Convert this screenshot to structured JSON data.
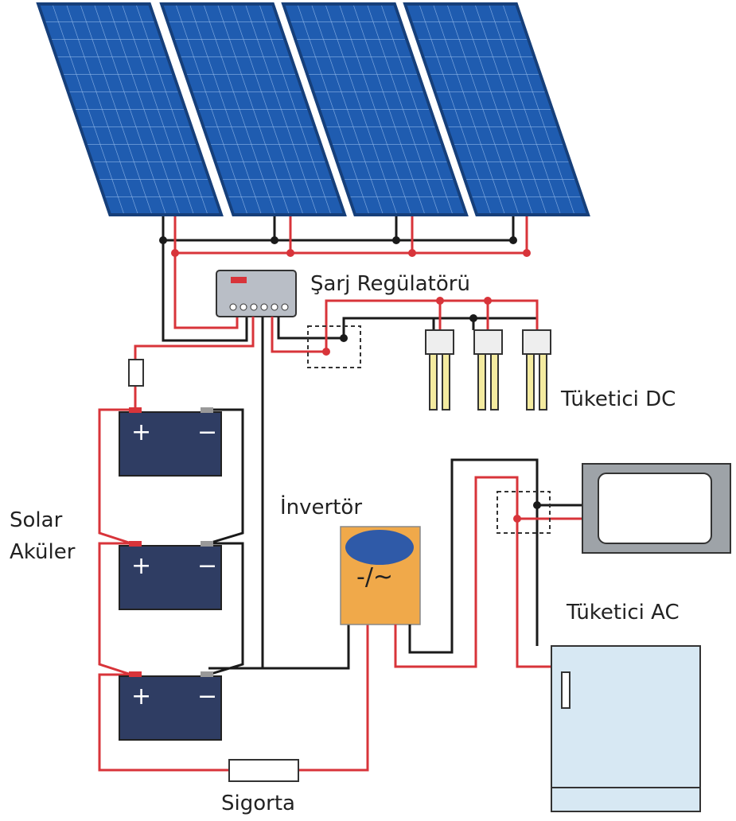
{
  "labels": {
    "charge_regulator": "Şarj Regülatörü",
    "dc_consumer": "Tüketici DC",
    "batteries": [
      "Solar",
      "Aküler"
    ],
    "inverter": "İnvertör",
    "ac_consumer": "Tüketici AC",
    "fuse": "Sigorta"
  },
  "inverter_symbol": "-/~",
  "battery_terminals": {
    "positive": "+",
    "negative": "−"
  }
}
